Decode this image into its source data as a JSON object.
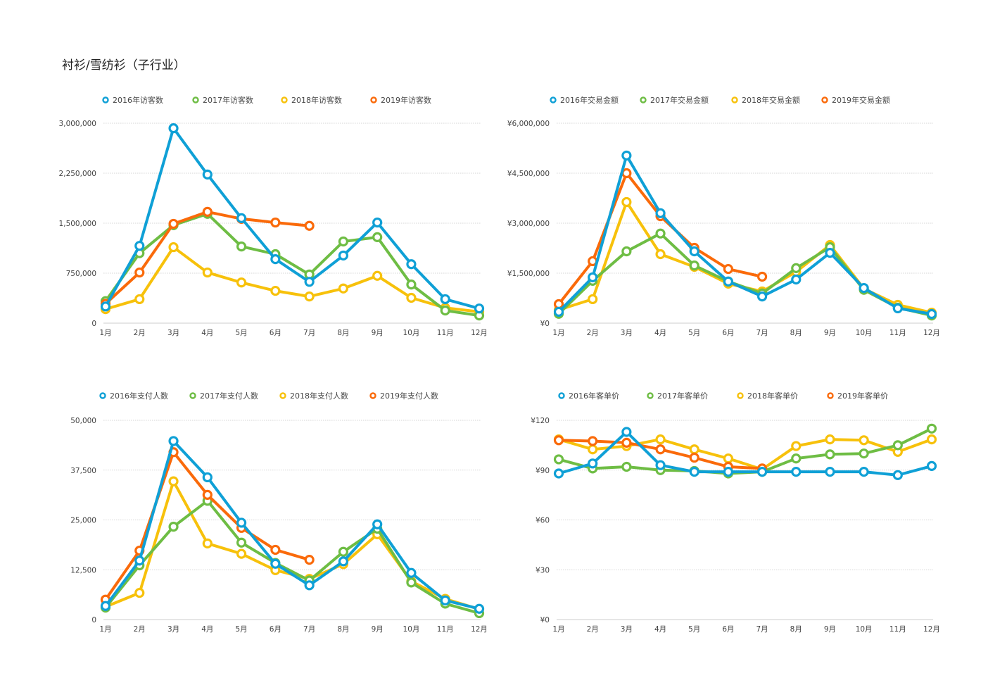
{
  "page": {
    "title": "衬衫/雪纺衫（子行业）"
  },
  "colors": {
    "2016": "#0fa0d6",
    "2017": "#6ebd44",
    "2018": "#f7c10b",
    "2019": "#fa6a0a",
    "grid": "#c8c8c8",
    "axis": "#cccccc",
    "tick_text": "#444444"
  },
  "chart_data": [
    {
      "type": "line",
      "title": "访客数",
      "xlabel": "",
      "ylabel": "",
      "categories": [
        "1月",
        "2月",
        "3月",
        "4月",
        "5月",
        "6月",
        "7月",
        "8月",
        "9月",
        "10月",
        "11月",
        "12月"
      ],
      "ylim": [
        0,
        3000000
      ],
      "yticks": [
        0,
        750000,
        1500000,
        2250000,
        3000000
      ],
      "ytick_labels": [
        "0",
        "750,000",
        "1,500,000",
        "2,250,000",
        "3,000,000"
      ],
      "grid": true,
      "legend_position": "top",
      "series": [
        {
          "name": "2016年访客数",
          "color_key": "2016",
          "values": [
            250000,
            1160000,
            2925000,
            2230000,
            1575000,
            960000,
            620000,
            1015000,
            1510000,
            885000,
            360000,
            220000
          ]
        },
        {
          "name": "2017年访客数",
          "color_key": "2017",
          "values": [
            330000,
            1050000,
            1470000,
            1640000,
            1150000,
            1035000,
            730000,
            1225000,
            1290000,
            580000,
            190000,
            115000
          ]
        },
        {
          "name": "2018年访客数",
          "color_key": "2018",
          "values": [
            210000,
            360000,
            1140000,
            760000,
            610000,
            485000,
            400000,
            520000,
            710000,
            380000,
            230000,
            170000
          ]
        },
        {
          "name": "2019年访客数",
          "color_key": "2019",
          "values": [
            290000,
            760000,
            1490000,
            1670000,
            1565000,
            1510000,
            1460000
          ]
        }
      ]
    },
    {
      "type": "line",
      "title": "交易金额",
      "xlabel": "",
      "ylabel": "",
      "categories": [
        "1月",
        "2月",
        "3月",
        "4月",
        "5月",
        "6月",
        "7月",
        "8月",
        "9月",
        "10月",
        "11月",
        "12月"
      ],
      "ylim": [
        0,
        6000000
      ],
      "yticks": [
        0,
        1500000,
        3000000,
        4500000,
        6000000
      ],
      "ytick_labels": [
        "¥0",
        "¥1,500,000",
        "¥3,000,000",
        "¥4,500,000",
        "¥6,000,000"
      ],
      "grid": true,
      "legend_position": "top",
      "series": [
        {
          "name": "2016年交易金额",
          "color_key": "2016",
          "values": [
            340000,
            1375000,
            5030000,
            3300000,
            2155000,
            1250000,
            800000,
            1310000,
            2110000,
            1055000,
            445000,
            275000
          ]
        },
        {
          "name": "2017年交易金额",
          "color_key": "2017",
          "values": [
            280000,
            1270000,
            2155000,
            2690000,
            1730000,
            1250000,
            890000,
            1650000,
            2280000,
            1000000,
            465000,
            230000
          ]
        },
        {
          "name": "2018年交易金额",
          "color_key": "2018",
          "values": [
            400000,
            720000,
            3635000,
            2070000,
            1690000,
            1185000,
            950000,
            1540000,
            2345000,
            1035000,
            550000,
            315000
          ]
        },
        {
          "name": "2019年交易金额",
          "color_key": "2019",
          "values": [
            570000,
            1860000,
            4500000,
            3210000,
            2260000,
            1625000,
            1395000
          ]
        }
      ]
    },
    {
      "type": "line",
      "title": "支付人数",
      "xlabel": "",
      "ylabel": "",
      "categories": [
        "1月",
        "2月",
        "3月",
        "4月",
        "5月",
        "6月",
        "7月",
        "8月",
        "9月",
        "10月",
        "11月",
        "12月"
      ],
      "ylim": [
        0,
        50000
      ],
      "yticks": [
        0,
        12500,
        25000,
        37500,
        50000
      ],
      "ytick_labels": [
        "0",
        "12,500",
        "25,000",
        "37,500",
        "50,000"
      ],
      "grid": true,
      "legend_position": "top",
      "series": [
        {
          "name": "2016年支付人数",
          "color_key": "2016",
          "values": [
            3400,
            14800,
            44800,
            35700,
            24300,
            14000,
            8600,
            14600,
            23900,
            11700,
            4800,
            2700
          ]
        },
        {
          "name": "2017年支付人数",
          "color_key": "2017",
          "values": [
            3000,
            13600,
            23300,
            29800,
            19300,
            14200,
            9800,
            17000,
            22800,
            9300,
            4000,
            1600
          ]
        },
        {
          "name": "2018年支付人数",
          "color_key": "2018",
          "values": [
            3200,
            6700,
            34700,
            19100,
            16500,
            12400,
            10200,
            13900,
            21400,
            9600,
            5200,
            2600
          ]
        },
        {
          "name": "2019年支付人数",
          "color_key": "2019",
          "values": [
            5000,
            17300,
            42000,
            31300,
            23000,
            17500,
            15000
          ]
        }
      ]
    },
    {
      "type": "line",
      "title": "客单价",
      "xlabel": "",
      "ylabel": "",
      "categories": [
        "1月",
        "2月",
        "3月",
        "4月",
        "5月",
        "6月",
        "7月",
        "8月",
        "9月",
        "10月",
        "11月",
        "12月"
      ],
      "ylim": [
        0,
        120
      ],
      "yticks": [
        0,
        30,
        60,
        90,
        120
      ],
      "ytick_labels": [
        "¥0",
        "¥30",
        "¥60",
        "¥90",
        "¥120"
      ],
      "grid": true,
      "legend_position": "top",
      "series": [
        {
          "name": "2016年客单价",
          "color_key": "2016",
          "values": [
            88,
            94,
            113,
            93,
            89,
            89,
            89,
            89,
            89,
            89,
            87,
            92.5
          ]
        },
        {
          "name": "2017年客单价",
          "color_key": "2017",
          "values": [
            96.5,
            91,
            92,
            90,
            89.5,
            88,
            89,
            97,
            99.5,
            100,
            105,
            115
          ]
        },
        {
          "name": "2018年客单价",
          "color_key": "2018",
          "values": [
            108.5,
            102.5,
            104.5,
            108.5,
            102.5,
            97,
            90.5,
            104.5,
            108.5,
            108,
            101,
            108.5
          ]
        },
        {
          "name": "2019年客单价",
          "color_key": "2019",
          "values": [
            108,
            107.5,
            106.5,
            102.5,
            97.5,
            92,
            91
          ]
        }
      ]
    }
  ]
}
